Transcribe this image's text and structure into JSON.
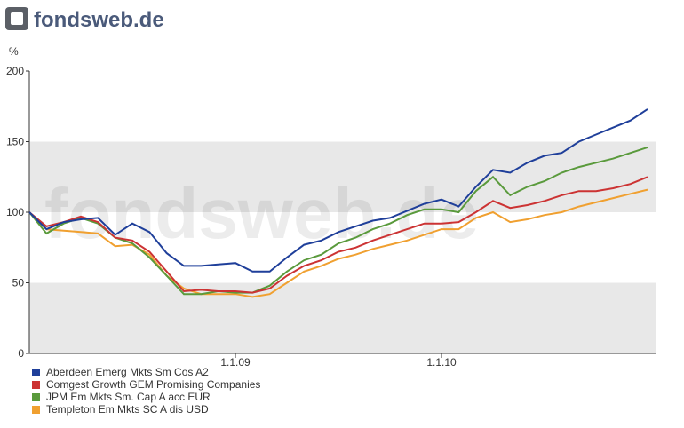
{
  "logo": "fondsweb.de",
  "chart_data": {
    "type": "line",
    "y_label": "%",
    "categories": [
      null,
      null,
      null,
      null,
      null,
      null,
      null,
      null,
      null,
      null,
      null,
      null,
      "1.1.09",
      null,
      null,
      null,
      null,
      null,
      null,
      null,
      null,
      null,
      null,
      null,
      "1.1.10",
      null,
      null,
      null,
      null,
      null,
      null,
      null,
      null,
      null,
      null,
      null,
      null
    ],
    "ylim": [
      0,
      200
    ],
    "yticks": [
      0,
      50,
      100,
      150,
      200
    ],
    "series": [
      {
        "name": "Aberdeen Emerg Mkts Sm Cos A2",
        "color": "#1f3f9a",
        "values": [
          100,
          88,
          93,
          95,
          96,
          84,
          92,
          86,
          71,
          62,
          62,
          63,
          64,
          58,
          58,
          68,
          77,
          80,
          86,
          90,
          94,
          96,
          101,
          106,
          109,
          104,
          118,
          130,
          128,
          135,
          140,
          142,
          150,
          155,
          160,
          165,
          173
        ]
      },
      {
        "name": "Comgest Growth GEM Promising Companies",
        "color": "#cc3333",
        "values": [
          100,
          90,
          93,
          97,
          93,
          82,
          80,
          72,
          58,
          44,
          45,
          44,
          44,
          43,
          46,
          55,
          62,
          66,
          72,
          75,
          80,
          84,
          88,
          92,
          92,
          93,
          100,
          108,
          103,
          105,
          108,
          112,
          115,
          115,
          117,
          120,
          125
        ]
      },
      {
        "name": "JPM Em Mkts Sm. Cap A acc EUR",
        "color": "#5a9a3c",
        "values": [
          100,
          85,
          92,
          96,
          92,
          82,
          78,
          68,
          55,
          42,
          42,
          44,
          43,
          43,
          48,
          58,
          66,
          70,
          78,
          82,
          88,
          92,
          98,
          102,
          102,
          100,
          115,
          125,
          112,
          118,
          122,
          128,
          132,
          135,
          138,
          142,
          146
        ]
      },
      {
        "name": "Templeton Em Mkts SC A dis USD",
        "color": "#f0a030",
        "values": [
          100,
          88,
          87,
          86,
          85,
          76,
          77,
          70,
          55,
          46,
          42,
          42,
          42,
          40,
          42,
          50,
          58,
          62,
          67,
          70,
          74,
          77,
          80,
          84,
          88,
          88,
          96,
          100,
          93,
          95,
          98,
          100,
          104,
          107,
          110,
          113,
          116
        ]
      }
    ]
  }
}
